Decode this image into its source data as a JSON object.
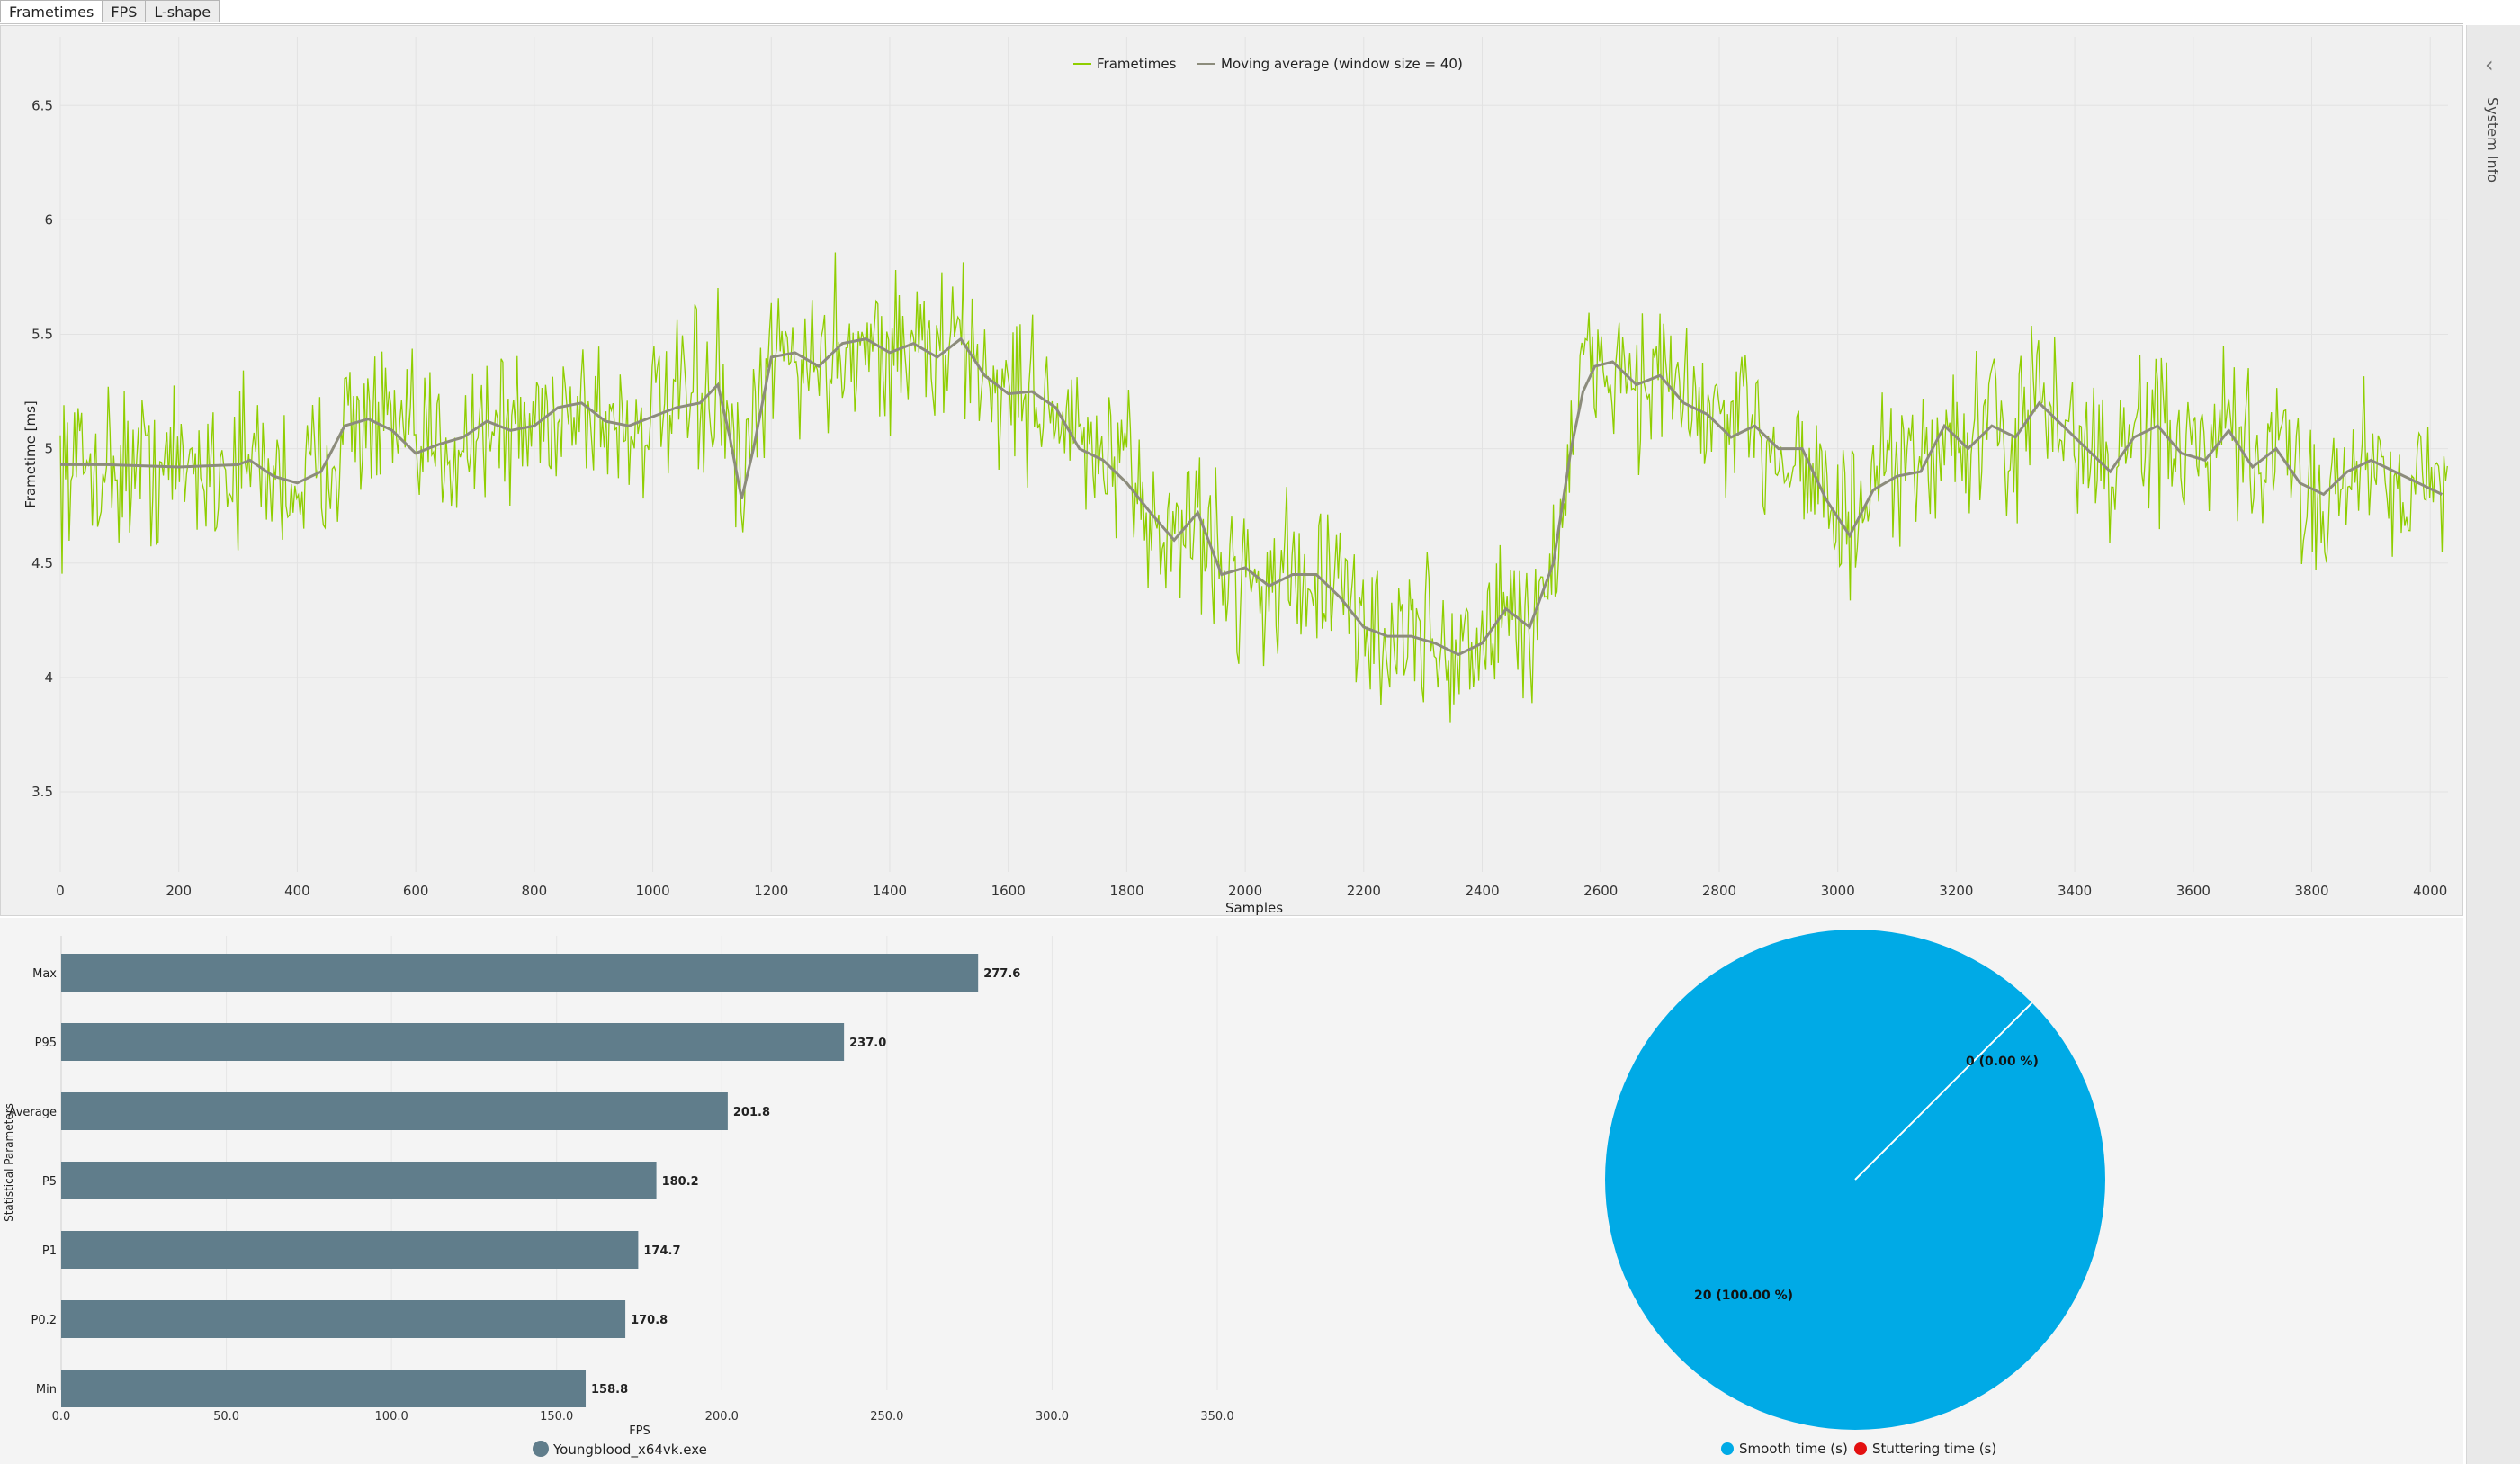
{
  "tabs": [
    "Frametimes",
    "FPS",
    "L-shape"
  ],
  "sidebar": {
    "label": "System Info",
    "arrow_icon": "chevron-left-icon"
  },
  "chart_data": [
    {
      "type": "line",
      "xlabel": "Samples",
      "ylabel": "Frametime [ms]",
      "xlim": [
        0,
        4030
      ],
      "ylim": [
        3.15,
        6.8
      ],
      "xticks": [
        0,
        200,
        400,
        600,
        800,
        1000,
        1200,
        1400,
        1600,
        1800,
        2000,
        2200,
        2400,
        2600,
        2800,
        3000,
        3200,
        3400,
        3600,
        3800,
        4000
      ],
      "yticks": [
        "3.5",
        "4",
        "4.5",
        "5",
        "5.5",
        "6",
        "6.5"
      ],
      "grid": true,
      "legend_position": "top-center",
      "series": [
        {
          "name": "Frametimes",
          "color": "#8fce00",
          "note_noise": 0.17
        },
        {
          "name": "Moving average (window size = 40)",
          "color": "#8c8c7c"
        }
      ],
      "moving_average": {
        "x": [
          0,
          80,
          200,
          300,
          320,
          360,
          400,
          440,
          480,
          520,
          560,
          600,
          640,
          680,
          720,
          760,
          800,
          840,
          880,
          920,
          960,
          1000,
          1040,
          1080,
          1110,
          1130,
          1150,
          1170,
          1200,
          1240,
          1280,
          1320,
          1360,
          1400,
          1440,
          1480,
          1520,
          1560,
          1600,
          1640,
          1680,
          1720,
          1760,
          1800,
          1840,
          1880,
          1920,
          1960,
          2000,
          2040,
          2080,
          2120,
          2160,
          2200,
          2240,
          2280,
          2320,
          2360,
          2400,
          2440,
          2480,
          2520,
          2550,
          2570,
          2590,
          2620,
          2660,
          2700,
          2740,
          2780,
          2820,
          2860,
          2900,
          2940,
          2980,
          3020,
          3060,
          3100,
          3140,
          3180,
          3220,
          3260,
          3300,
          3340,
          3380,
          3420,
          3460,
          3500,
          3540,
          3580,
          3620,
          3660,
          3700,
          3740,
          3780,
          3820,
          3860,
          3900,
          3940,
          3980,
          4020
        ],
        "y": [
          4.93,
          4.93,
          4.92,
          4.93,
          4.95,
          4.88,
          4.85,
          4.9,
          5.1,
          5.13,
          5.08,
          4.98,
          5.02,
          5.05,
          5.12,
          5.08,
          5.1,
          5.18,
          5.2,
          5.12,
          5.1,
          5.14,
          5.18,
          5.2,
          5.28,
          5.05,
          4.78,
          5.0,
          5.4,
          5.42,
          5.36,
          5.46,
          5.48,
          5.42,
          5.46,
          5.4,
          5.48,
          5.32,
          5.24,
          5.25,
          5.18,
          5.0,
          4.95,
          4.85,
          4.72,
          4.6,
          4.72,
          4.45,
          4.48,
          4.4,
          4.45,
          4.45,
          4.35,
          4.22,
          4.18,
          4.18,
          4.15,
          4.1,
          4.15,
          4.3,
          4.22,
          4.5,
          5.0,
          5.25,
          5.36,
          5.38,
          5.28,
          5.32,
          5.2,
          5.15,
          5.05,
          5.1,
          5.0,
          5.0,
          4.78,
          4.62,
          4.82,
          4.88,
          4.9,
          5.1,
          5.0,
          5.1,
          5.05,
          5.2,
          5.1,
          5.0,
          4.9,
          5.05,
          5.1,
          4.98,
          4.95,
          5.08,
          4.92,
          5.0,
          4.85,
          4.8,
          4.9,
          4.95,
          4.9,
          4.85,
          4.8
        ]
      }
    },
    {
      "type": "bar",
      "orientation": "horizontal",
      "categories": [
        "Max",
        "P95",
        "Average",
        "P5",
        "P1",
        "P0.2",
        "Min"
      ],
      "values": [
        277.6,
        237.0,
        201.8,
        180.2,
        174.7,
        170.8,
        158.8
      ],
      "value_labels": [
        "277.6",
        "237.0",
        "201.8",
        "180.2",
        "174.7",
        "170.8",
        "158.8"
      ],
      "xlabel": "FPS",
      "ylabel": "Statistical Parameters",
      "xlim": [
        0,
        350
      ],
      "xticks": [
        "0.0",
        "50.0",
        "100.0",
        "150.0",
        "200.0",
        "250.0",
        "300.0",
        "350.0"
      ],
      "legend": "Youngblood_x64vk.exe",
      "color": "#607d8b"
    },
    {
      "type": "pie",
      "labels": [
        "Smooth time (s)",
        "Stuttering time (s)"
      ],
      "values": [
        20,
        0
      ],
      "slice_labels": [
        "20 (100.00 %)",
        "0 (0.00 %)"
      ],
      "colors": [
        "#00aae6",
        "#e31010"
      ],
      "legend_position": "bottom"
    }
  ]
}
